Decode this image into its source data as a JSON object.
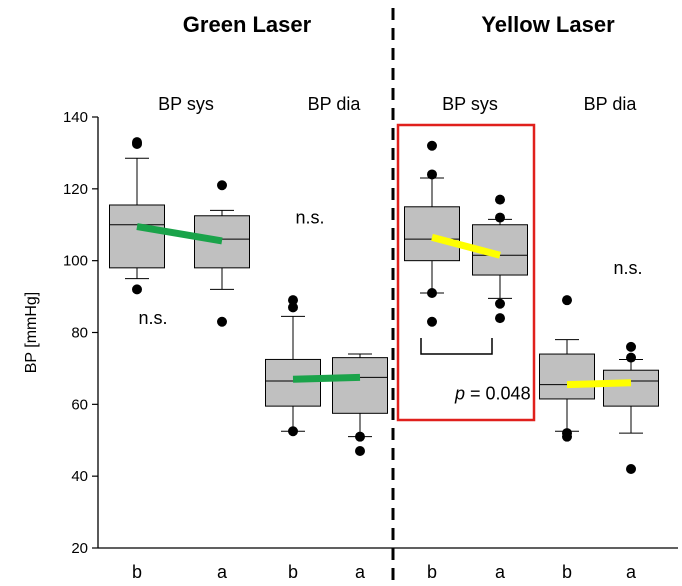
{
  "chart_data": {
    "type": "box",
    "panels": [
      {
        "title": "Green Laser",
        "color": "#1aa34a"
      },
      {
        "title": "Yellow Laser",
        "color": "#ffff00"
      }
    ],
    "ylabel": "BP [mmHg]",
    "ylim": [
      20,
      140
    ],
    "yticks": [
      20,
      40,
      60,
      80,
      100,
      120,
      140
    ],
    "groups": [
      {
        "label": "BP sys",
        "panel": 0,
        "annotation": "n.s.",
        "annotation_y": 84
      },
      {
        "label": "BP dia",
        "panel": 0,
        "annotation": "n.s.",
        "annotation_y": 112
      },
      {
        "label": "BP sys",
        "panel": 1,
        "annotation": "p = 0.048",
        "annotation_prefix": "p",
        "annotation_suffix": " = 0.048",
        "annotation_y": 63,
        "highlighted": true,
        "highlight_color": "#e0201c"
      },
      {
        "label": "BP dia",
        "panel": 1,
        "annotation": "n.s.",
        "annotation_y": 98
      }
    ],
    "boxes": [
      {
        "x": "b",
        "group": 0,
        "q1": 98,
        "median": 110,
        "q3": 115.5,
        "whisker_low": 95,
        "whisker_high": 128.5,
        "outliers": [
          92,
          132.5,
          133
        ]
      },
      {
        "x": "a",
        "group": 0,
        "q1": 98,
        "median": 106,
        "q3": 112.5,
        "whisker_low": 92,
        "whisker_high": 114,
        "outliers": [
          83,
          121
        ]
      },
      {
        "x": "b",
        "group": 1,
        "q1": 59.5,
        "median": 66.5,
        "q3": 72.5,
        "whisker_low": 52.5,
        "whisker_high": 84.5,
        "outliers": [
          52.5,
          87,
          89
        ]
      },
      {
        "x": "a",
        "group": 1,
        "q1": 57.5,
        "median": 67.5,
        "q3": 73,
        "whisker_low": 51,
        "whisker_high": 74,
        "outliers": [
          47,
          51
        ]
      },
      {
        "x": "b",
        "group": 2,
        "q1": 100,
        "median": 106,
        "q3": 115,
        "whisker_low": 91,
        "whisker_high": 123,
        "outliers": [
          83,
          91,
          124,
          132
        ]
      },
      {
        "x": "a",
        "group": 2,
        "q1": 96,
        "median": 101.5,
        "q3": 110,
        "whisker_low": 89.5,
        "whisker_high": 111.5,
        "outliers": [
          84,
          88,
          112,
          117
        ]
      },
      {
        "x": "b",
        "group": 3,
        "q1": 61.5,
        "median": 65.5,
        "q3": 74,
        "whisker_low": 52.5,
        "whisker_high": 78,
        "outliers": [
          51,
          52,
          89
        ]
      },
      {
        "x": "a",
        "group": 3,
        "q1": 59.5,
        "median": 66.5,
        "q3": 69.5,
        "whisker_low": 52,
        "whisker_high": 72.5,
        "outliers": [
          42,
          73,
          76
        ]
      }
    ],
    "trend_lines": [
      {
        "group": 0,
        "from": 109.5,
        "to": 105.5
      },
      {
        "group": 1,
        "from": 67,
        "to": 67.5
      },
      {
        "group": 2,
        "from": 106.5,
        "to": 101.5
      },
      {
        "group": 3,
        "from": 65.5,
        "to": 66
      }
    ]
  }
}
